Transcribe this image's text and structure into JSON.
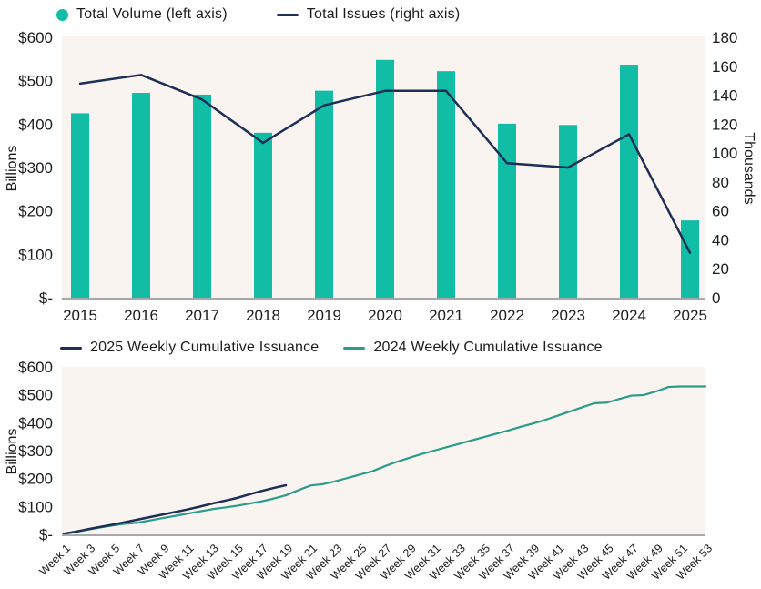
{
  "colors": {
    "bar_teal": "#11BDA5",
    "line_teal": "#2A9D8A",
    "navy": "#1E2F57",
    "plot_bg": "#FAF4F1",
    "axis_line": "#A8A8A8",
    "text": "#1C1C1C"
  },
  "chart_data": [
    {
      "id": "annual-volume-and-issues",
      "type": "bar+line",
      "categories": [
        "2015",
        "2016",
        "2017",
        "2018",
        "2019",
        "2020",
        "2021",
        "2022",
        "2023",
        "2024",
        "2025"
      ],
      "series": [
        {
          "name": "Total Volume (left axis)",
          "type": "bar",
          "axis": "left",
          "unit": "$ billions",
          "values": [
            425,
            472,
            468,
            380,
            477,
            548,
            522,
            401,
            398,
            537,
            178
          ]
        },
        {
          "name": "Total Issues (right axis)",
          "type": "line",
          "axis": "right",
          "unit": "thousands",
          "values": [
            148,
            154,
            137,
            107,
            133,
            143,
            143,
            93,
            90,
            113,
            31
          ]
        }
      ],
      "y_left": {
        "label": "Billions",
        "min": 0,
        "max": 600,
        "step": 100,
        "tick_labels": [
          "$-",
          "$100",
          "$200",
          "$300",
          "$400",
          "$500",
          "$600"
        ]
      },
      "y_right": {
        "label": "Thousands",
        "min": 0,
        "max": 180,
        "step": 20,
        "tick_labels": [
          "0",
          "20",
          "40",
          "60",
          "80",
          "100",
          "120",
          "140",
          "160",
          "180"
        ]
      },
      "grid": false,
      "legend_position": "top"
    },
    {
      "id": "weekly-cumulative-issuance",
      "type": "line",
      "x_unit": "week",
      "x_min_week": 1,
      "x_max_week": 53,
      "x_tick_labels": [
        "Week 1",
        "Week 3",
        "Week 5",
        "Week 7",
        "Week 9",
        "Week 11",
        "Week 13",
        "Week 15",
        "Week 17",
        "Week 19",
        "Week 21",
        "Week 23",
        "Week 25",
        "Week 27",
        "Week 29",
        "Week 31",
        "Week 33",
        "Week 35",
        "Week 37",
        "Week 39",
        "Week 41",
        "Week 43",
        "Week 45",
        "Week 47",
        "Week 49",
        "Week 51",
        "Week 53"
      ],
      "series": [
        {
          "name": "2025 Weekly Cumulative Issuance",
          "color_key": "navy",
          "start_week": 1,
          "unit": "$ billions",
          "values": [
            2,
            10,
            19,
            27,
            35,
            44,
            53,
            62,
            71,
            80,
            89,
            99,
            110,
            120,
            130,
            143,
            155,
            166,
            176
          ]
        },
        {
          "name": "2024 Weekly Cumulative Issuance",
          "color_key": "line_teal",
          "start_week": 1,
          "unit": "$ billions",
          "values": [
            2,
            9,
            17,
            25,
            32,
            38,
            42,
            50,
            58,
            66,
            74,
            82,
            90,
            96,
            102,
            110,
            118,
            128,
            140,
            158,
            175,
            180,
            190,
            202,
            214,
            226,
            244,
            260,
            274,
            288,
            300,
            312,
            324,
            336,
            348,
            360,
            372,
            385,
            397,
            410,
            425,
            440,
            455,
            470,
            472,
            485,
            497,
            499,
            512,
            528,
            530,
            530,
            530
          ]
        }
      ],
      "y": {
        "label": "Billions",
        "min": 0,
        "max": 600,
        "step": 100,
        "tick_labels": [
          "$-",
          "$100",
          "$200",
          "$300",
          "$400",
          "$500",
          "$600"
        ]
      },
      "grid": false,
      "legend_position": "top"
    }
  ]
}
